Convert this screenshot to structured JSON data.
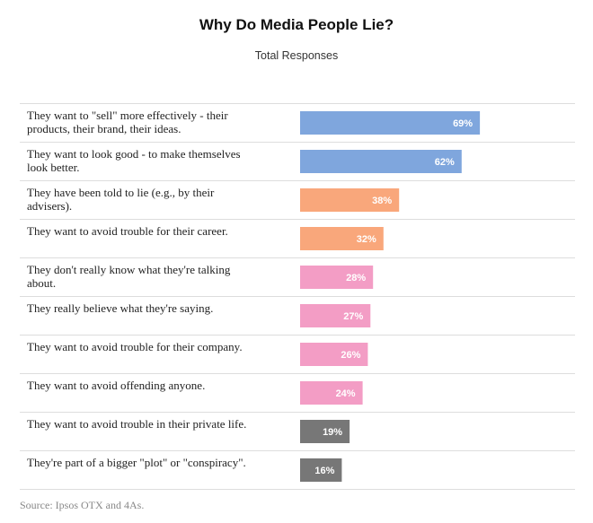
{
  "colors": {
    "blue": "#7fa6dd",
    "orange": "#f9a77b",
    "pink": "#f39dc5",
    "gray": "#777777"
  },
  "chart_data": {
    "type": "bar",
    "orientation": "horizontal",
    "title": "Why Do Media People Lie?",
    "subtitle": "Total Responses",
    "source": "Source: Ipsos OTX and 4As.",
    "value_suffix": "%",
    "categories": [
      "They want to \"sell\" more effectively - their products, their brand, their ideas.",
      "They want to look good - to make themselves look better.",
      "They have been told to lie (e.g., by their advisers).",
      "They want to avoid trouble for their career.",
      "They don't really know what they're talking about.",
      "They really believe what they're saying.",
      "They want to avoid trouble for their company.",
      "They want to avoid offending anyone.",
      "They want to avoid trouble in their private life.",
      "They're part of a bigger \"plot\" or \"conspiracy\"."
    ],
    "label_lines": [
      [
        "They want to \"sell\" more effectively - their",
        "products, their brand, their ideas."
      ],
      [
        "They want to look good - to make themselves",
        "look better."
      ],
      [
        "They have been told to lie (e.g., by their",
        "advisers)."
      ],
      [
        "They want to avoid trouble for their career."
      ],
      [
        "They don't really know what they're talking",
        "about."
      ],
      [
        "They really believe what they're saying."
      ],
      [
        "They want to avoid trouble for their company."
      ],
      [
        "They want to avoid offending anyone."
      ],
      [
        "They want to avoid trouble in their private life."
      ],
      [
        "They're part of a bigger \"plot\" or \"conspiracy\"."
      ]
    ],
    "values": [
      69,
      62,
      38,
      32,
      28,
      27,
      26,
      24,
      19,
      16
    ],
    "bar_colors": [
      "blue",
      "blue",
      "orange",
      "orange",
      "pink",
      "pink",
      "pink",
      "pink",
      "gray",
      "gray"
    ],
    "xlim": [
      0,
      100
    ],
    "grid": false,
    "legend": "none"
  }
}
